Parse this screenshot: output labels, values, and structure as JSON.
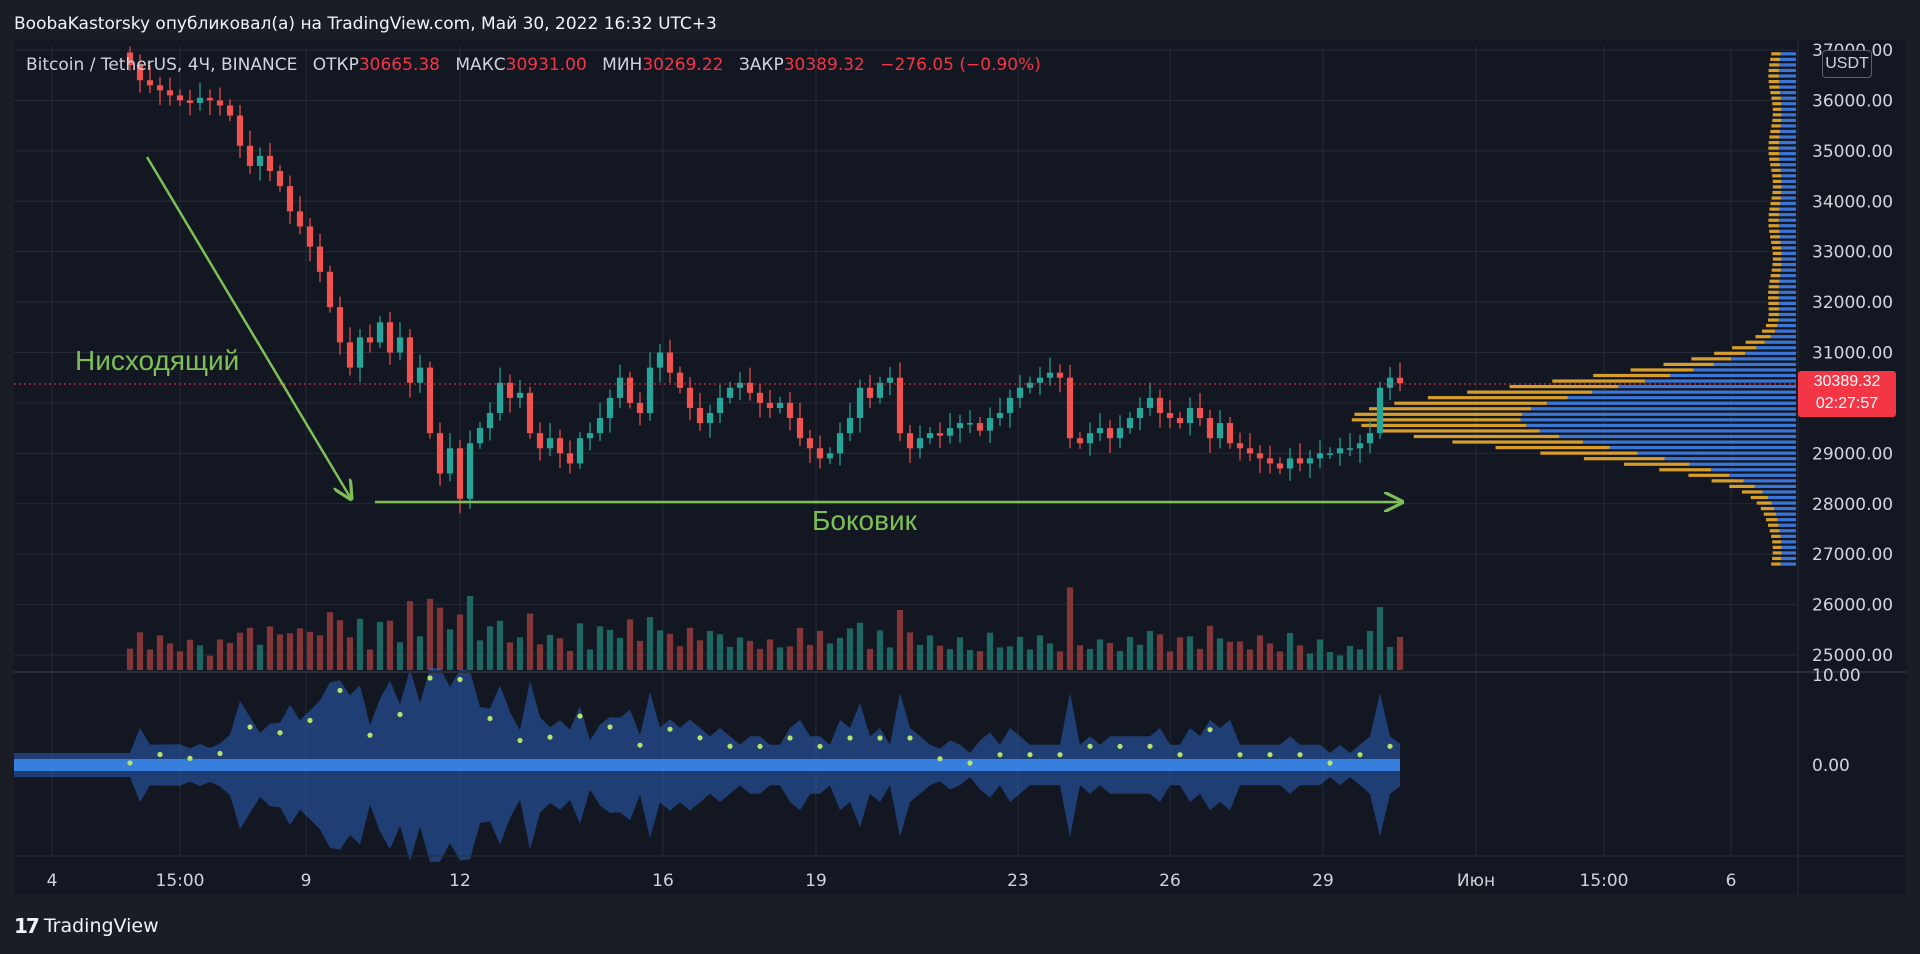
{
  "header": {
    "publisher_line": "BoobaKastorsky опубликовал(а) на TradingView.com, Май 30, 2022 16:32 UTC+3"
  },
  "legend": {
    "symbol": "Bitcoin / TetherUS, 4Ч, BINANCE",
    "open_label": "ОТКР",
    "open": "30665.38",
    "high_label": "МАКС",
    "high": "30931.00",
    "low_label": "МИН",
    "low": "30269.22",
    "close_label": "ЗАКР",
    "close": "30389.32",
    "change": "−276.05 (−0.90%)"
  },
  "price_axis": {
    "unit": "USDT",
    "ticks": [
      "37000.00",
      "36000.00",
      "35000.00",
      "34000.00",
      "33000.00",
      "32000.00",
      "31000.00",
      "30000.00",
      "29000.00",
      "28000.00",
      "27000.00",
      "26000.00",
      "25000.00"
    ],
    "last_price": "30389.32",
    "countdown": "02:27:57"
  },
  "osc_axis": {
    "ticks": [
      "10.00",
      "0.00"
    ]
  },
  "time_axis": {
    "ticks": [
      "4",
      "15:00",
      "9",
      "12",
      "16",
      "19",
      "23",
      "26",
      "29",
      "Июн",
      "15:00",
      "6"
    ]
  },
  "annotations": {
    "downtrend": "Нисходящий",
    "sideways": "Боковик"
  },
  "footer": {
    "brand": "TradingView"
  },
  "colors": {
    "up": "#26a69a",
    "down": "#ef5350",
    "bg": "#131722",
    "annotation": "#7ec057",
    "vp_buy": "#2962ff",
    "vp_sell": "#e2a52d"
  },
  "chart_data": {
    "type": "candlestick",
    "symbol": "BTC/USDT",
    "timeframe": "4Ч",
    "y_range": [
      24600,
      37100
    ],
    "closes": [
      36700,
      36400,
      36300,
      36200,
      36100,
      36000,
      35950,
      36050,
      36000,
      35900,
      35700,
      35100,
      34700,
      34900,
      34600,
      34300,
      33800,
      33500,
      33100,
      32600,
      31900,
      31200,
      30700,
      31300,
      31200,
      31600,
      31000,
      31300,
      30400,
      30700,
      29400,
      28600,
      29100,
      28100,
      29200,
      29500,
      29800,
      30400,
      30100,
      30200,
      29400,
      29100,
      29300,
      29000,
      28800,
      29300,
      29400,
      29700,
      30100,
      30500,
      30000,
      29800,
      30700,
      31000,
      30600,
      30300,
      29900,
      29600,
      29800,
      30100,
      30300,
      30400,
      30200,
      30000,
      29900,
      30000,
      29700,
      29300,
      29100,
      28900,
      29000,
      29400,
      29700,
      30300,
      30100,
      30400,
      30500,
      29400,
      29100,
      29300,
      29400,
      29350,
      29500,
      29600,
      29600,
      29450,
      29700,
      29800,
      30100,
      30300,
      30400,
      30500,
      30600,
      30500,
      29300,
      29200,
      29400,
      29500,
      29300,
      29500,
      29700,
      29900,
      30100,
      29800,
      29700,
      29600,
      29900,
      29700,
      29300,
      29600,
      29200,
      29100,
      29000,
      28900,
      28800,
      28700,
      28900,
      28800,
      28900,
      29000,
      29000,
      29100,
      29100,
      29200,
      29400,
      30300,
      30500,
      30389
    ]
  }
}
